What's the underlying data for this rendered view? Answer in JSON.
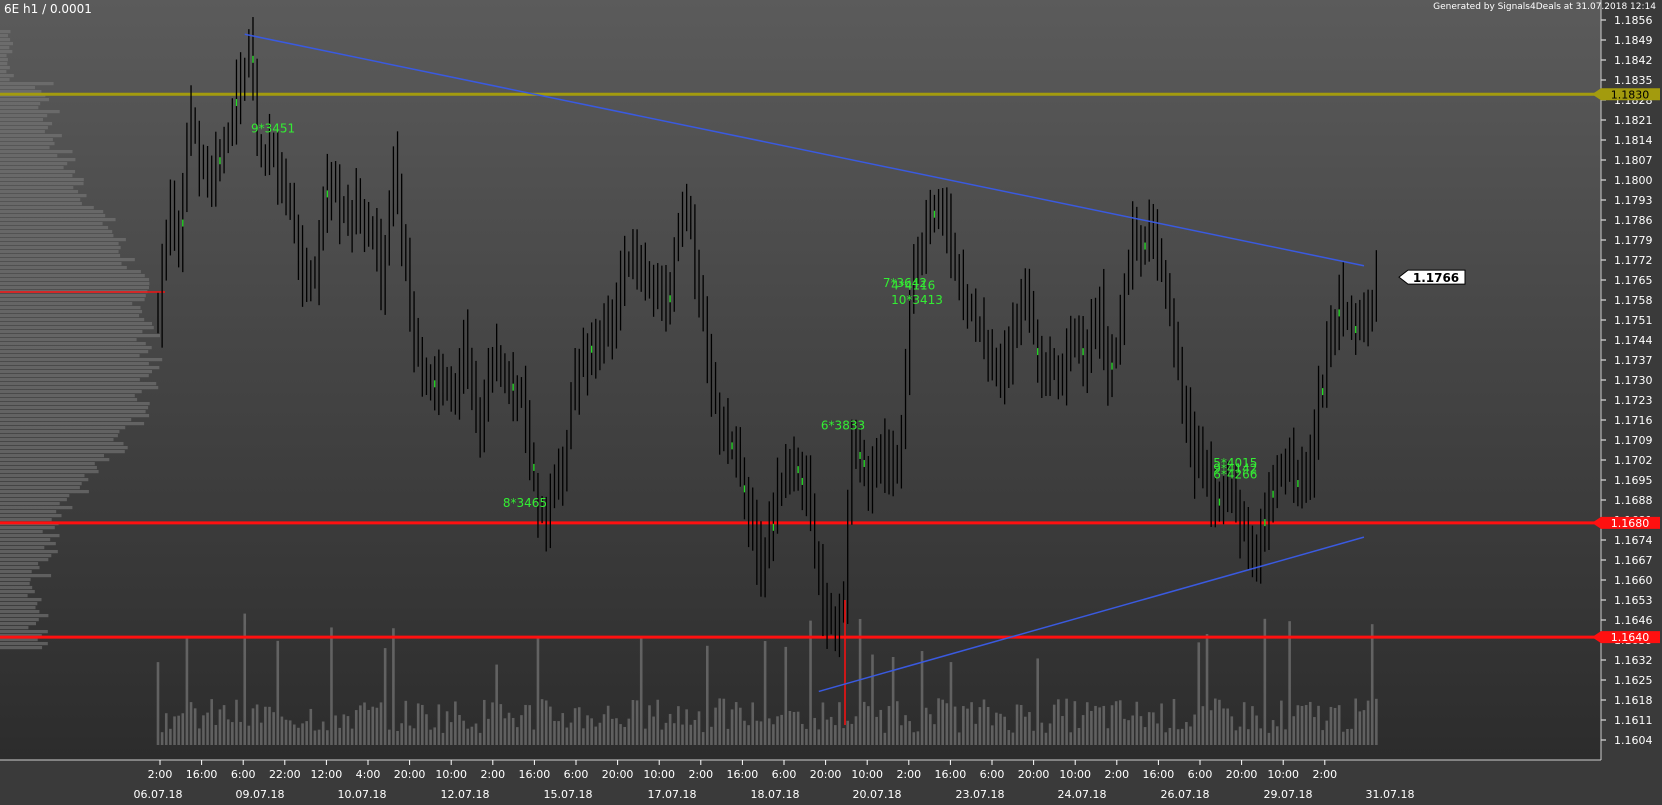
{
  "header": {
    "symbol": "6E h1 / 0.0001",
    "generated": "Generated by Signals4Deals at 31.07.2018 12:14"
  },
  "colors": {
    "bar": "#000000",
    "bar_highlight": "#22dd22",
    "level_yellow": "#a39b0e",
    "level_red": "#ff1010",
    "trendline": "#3a5ae0",
    "signal_text": "#33ee33",
    "profile": "#7a7a7a",
    "volume": "#8a8a8a",
    "axis_text": "#ffffff"
  },
  "chart_data": {
    "type": "ohlc",
    "title": "6E h1 / 0.0001",
    "ylim": [
      1.1597,
      1.1861
    ],
    "y_ticks": [
      "1.1856",
      "1.1849",
      "1.1842",
      "1.1835",
      "1.1828",
      "1.1821",
      "1.1814",
      "1.1807",
      "1.1800",
      "1.1793",
      "1.1786",
      "1.1779",
      "1.1772",
      "1.1765",
      "1.1758",
      "1.1751",
      "1.1744",
      "1.1737",
      "1.1730",
      "1.1723",
      "1.1716",
      "1.1709",
      "1.1702",
      "1.1695",
      "1.1688",
      "1.1681",
      "1.1674",
      "1.1667",
      "1.1660",
      "1.1653",
      "1.1646",
      "1.1639",
      "1.1632",
      "1.1625",
      "1.1618",
      "1.1611",
      "1.1604"
    ],
    "x_time_labels": [
      "2:00",
      "16:00",
      "6:00",
      "22:00",
      "12:00",
      "4:00",
      "20:00",
      "10:00",
      "2:00",
      "16:00",
      "6:00",
      "20:00",
      "10:00",
      "2:00",
      "16:00",
      "6:00",
      "20:00",
      "10:00",
      "2:00",
      "16:00",
      "6:00",
      "20:00",
      "10:00",
      "2:00",
      "16:00",
      "6:00",
      "20:00",
      "10:00",
      "2:00"
    ],
    "x_date_labels": [
      "06.07.18",
      "09.07.18",
      "10.07.18",
      "12.07.18",
      "15.07.18",
      "17.07.18",
      "18.07.18",
      "20.07.18",
      "23.07.18",
      "24.07.18",
      "26.07.18",
      "29.07.18",
      "31.07.18"
    ],
    "horizontal_levels": [
      {
        "label": "1.1830",
        "value": 1.183,
        "color": "yellow"
      },
      {
        "label": "1.1680",
        "value": 1.168,
        "color": "red"
      },
      {
        "label": "1.1640",
        "value": 1.164,
        "color": "red"
      }
    ],
    "last_price": "1.1766",
    "trendlines": [
      {
        "from_bar": 21,
        "from_price": 1.1851,
        "to_bar": 292,
        "to_price": 1.177
      },
      {
        "from_bar": 160,
        "from_price": 1.1621,
        "to_bar": 292,
        "to_price": 1.1675
      }
    ],
    "signals": [
      {
        "text": "9*3451",
        "bar": 23,
        "price": 1.1818
      },
      {
        "text": "8*3465",
        "bar": 84,
        "price": 1.1687
      },
      {
        "text": "6*3833",
        "bar": 161,
        "price": 1.1714
      },
      {
        "text": "7*3642",
        "bar": 176,
        "price": 1.1764
      },
      {
        "text": "4*4116",
        "bar": 178,
        "price": 1.1763
      },
      {
        "text": "10*3413",
        "bar": 178,
        "price": 1.1758
      },
      {
        "text": "5*4015",
        "bar": 256,
        "price": 1.1701
      },
      {
        "text": "9*4142",
        "bar": 256,
        "price": 1.1699
      },
      {
        "text": "6*4266",
        "bar": 256,
        "price": 1.1697
      }
    ],
    "price_anchors": [
      [
        0,
        1.1752
      ],
      [
        3,
        1.179
      ],
      [
        5,
        1.1772
      ],
      [
        7,
        1.1812
      ],
      [
        8,
        1.1822
      ],
      [
        10,
        1.1805
      ],
      [
        12,
        1.18
      ],
      [
        14,
        1.1807
      ],
      [
        16,
        1.1813
      ],
      [
        18,
        1.1822
      ],
      [
        20,
        1.1835
      ],
      [
        22,
        1.1845
      ],
      [
        24,
        1.1815
      ],
      [
        26,
        1.1805
      ],
      [
        28,
        1.1811
      ],
      [
        30,
        1.18
      ],
      [
        32,
        1.1792
      ],
      [
        34,
        1.1777
      ],
      [
        36,
        1.176
      ],
      [
        38,
        1.177
      ],
      [
        40,
        1.179
      ],
      [
        42,
        1.1802
      ],
      [
        44,
        1.179
      ],
      [
        46,
        1.1785
      ],
      [
        48,
        1.1792
      ],
      [
        50,
        1.1785
      ],
      [
        52,
        1.178
      ],
      [
        54,
        1.1768
      ],
      [
        56,
        1.179
      ],
      [
        57,
        1.181
      ],
      [
        58,
        1.1795
      ],
      [
        59,
        1.178
      ],
      [
        61,
        1.176
      ],
      [
        62,
        1.1748
      ],
      [
        64,
        1.173
      ],
      [
        66,
        1.1727
      ],
      [
        68,
        1.173
      ],
      [
        70,
        1.1728
      ],
      [
        72,
        1.173
      ],
      [
        74,
        1.174
      ],
      [
        76,
        1.173
      ],
      [
        78,
        1.1712
      ],
      [
        80,
        1.1735
      ],
      [
        82,
        1.174
      ],
      [
        84,
        1.173
      ],
      [
        86,
        1.1725
      ],
      [
        88,
        1.1722
      ],
      [
        90,
        1.1705
      ],
      [
        92,
        1.1688
      ],
      [
        94,
        1.1678
      ],
      [
        96,
        1.1695
      ],
      [
        98,
        1.1702
      ],
      [
        100,
        1.1722
      ],
      [
        102,
        1.1735
      ],
      [
        104,
        1.1738
      ],
      [
        106,
        1.174
      ],
      [
        108,
        1.1745
      ],
      [
        110,
        1.175
      ],
      [
        112,
        1.1765
      ],
      [
        114,
        1.1775
      ],
      [
        116,
        1.177
      ],
      [
        118,
        1.1768
      ],
      [
        120,
        1.176
      ],
      [
        122,
        1.1762
      ],
      [
        124,
        1.1765
      ],
      [
        126,
        1.1778
      ],
      [
        128,
        1.179
      ],
      [
        130,
        1.177
      ],
      [
        132,
        1.175
      ],
      [
        134,
        1.173
      ],
      [
        136,
        1.1718
      ],
      [
        138,
        1.171
      ],
      [
        140,
        1.17
      ],
      [
        142,
        1.169
      ],
      [
        144,
        1.168
      ],
      [
        146,
        1.1665
      ],
      [
        148,
        1.168
      ],
      [
        150,
        1.1692
      ],
      [
        152,
        1.17
      ],
      [
        154,
        1.1695
      ],
      [
        156,
        1.17
      ],
      [
        158,
        1.1685
      ],
      [
        160,
        1.1663
      ],
      [
        162,
        1.1648
      ],
      [
        164,
        1.1645
      ],
      [
        166,
        1.1652
      ],
      [
        168,
        1.1715
      ],
      [
        170,
        1.1702
      ],
      [
        172,
        1.169
      ],
      [
        174,
        1.17
      ],
      [
        176,
        1.1705
      ],
      [
        178,
        1.17
      ],
      [
        180,
        1.1712
      ],
      [
        182,
        1.176
      ],
      [
        184,
        1.177
      ],
      [
        186,
        1.1783
      ],
      [
        188,
        1.1795
      ],
      [
        190,
        1.179
      ],
      [
        192,
        1.178
      ],
      [
        194,
        1.1765
      ],
      [
        196,
        1.1755
      ],
      [
        198,
        1.1752
      ],
      [
        200,
        1.1745
      ],
      [
        202,
        1.174
      ],
      [
        204,
        1.1735
      ],
      [
        206,
        1.1742
      ],
      [
        208,
        1.1755
      ],
      [
        210,
        1.1762
      ],
      [
        212,
        1.1745
      ],
      [
        214,
        1.173
      ],
      [
        216,
        1.1738
      ],
      [
        218,
        1.1732
      ],
      [
        220,
        1.1738
      ],
      [
        222,
        1.1745
      ],
      [
        224,
        1.1735
      ],
      [
        226,
        1.1748
      ],
      [
        228,
        1.1755
      ],
      [
        230,
        1.173
      ],
      [
        232,
        1.1745
      ],
      [
        234,
        1.1762
      ],
      [
        236,
        1.1785
      ],
      [
        238,
        1.178
      ],
      [
        240,
        1.1782
      ],
      [
        242,
        1.1778
      ],
      [
        244,
        1.176
      ],
      [
        246,
        1.1745
      ],
      [
        248,
        1.1725
      ],
      [
        250,
        1.1705
      ],
      [
        252,
        1.17
      ],
      [
        254,
        1.1695
      ],
      [
        256,
        1.169
      ],
      [
        258,
        1.1688
      ],
      [
        260,
        1.1692
      ],
      [
        262,
        1.168
      ],
      [
        264,
        1.167
      ],
      [
        266,
        1.1665
      ],
      [
        268,
        1.168
      ],
      [
        270,
        1.1693
      ],
      [
        272,
        1.17
      ],
      [
        274,
        1.1702
      ],
      [
        276,
        1.17
      ],
      [
        278,
        1.1695
      ],
      [
        280,
        1.171
      ],
      [
        282,
        1.173
      ],
      [
        284,
        1.1745
      ],
      [
        286,
        1.1758
      ],
      [
        288,
        1.1755
      ],
      [
        290,
        1.1748
      ],
      [
        292,
        1.175
      ],
      [
        294,
        1.1762
      ],
      [
        295,
        1.1766
      ]
    ]
  }
}
